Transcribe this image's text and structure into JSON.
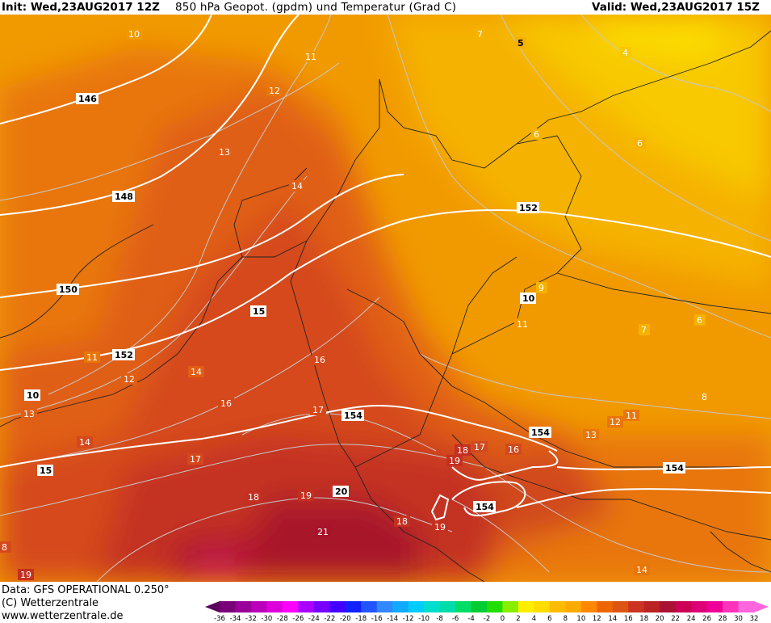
{
  "header": {
    "init": "Init: Wed,23AUG2017 12Z",
    "title": "850 hPa Geopot. (gpdm) und Temperatur (Grad C)",
    "valid": "Valid: Wed,23AUG2017 15Z"
  },
  "footer": {
    "data_source": "Data: GFS OPERATIONAL 0.250°",
    "copyright": "(C) Wetterzentrale",
    "website": "www.wetterzentrale.de"
  },
  "colorbar": {
    "ticks": [
      "-36",
      "-34",
      "-32",
      "-30",
      "-28",
      "-26",
      "-24",
      "-22",
      "-20",
      "-18",
      "-16",
      "-14",
      "-12",
      "-10",
      "-8",
      "-6",
      "-4",
      "-2",
      "0",
      "2",
      "4",
      "6",
      "8",
      "10",
      "12",
      "14",
      "16",
      "18",
      "20",
      "22",
      "24",
      "26",
      "28",
      "30",
      "32"
    ],
    "colors": [
      "#5a005a",
      "#7a007a",
      "#9a009a",
      "#bb00bb",
      "#dd00dd",
      "#ff00ff",
      "#aa00ff",
      "#7700ff",
      "#4400ff",
      "#1122ff",
      "#2255ff",
      "#3388ff",
      "#11aaff",
      "#00ccff",
      "#00ddcc",
      "#00ddaa",
      "#00dd66",
      "#00cc33",
      "#22dd00",
      "#88ee00",
      "#ffee00",
      "#ffdd00",
      "#ffbb00",
      "#ffaa00",
      "#ff8800",
      "#ee6600",
      "#dd5511",
      "#cc3322",
      "#bb2222",
      "#aa1133",
      "#cc0055",
      "#dd0077",
      "#ee0099",
      "#ff33bb",
      "#ff66dd"
    ]
  },
  "map": {
    "field": "850 hPa temperature (Grad C) with geopotential contours (gpdm)",
    "temperature_labels": [
      "10",
      "11",
      "12",
      "13",
      "14",
      "15",
      "16",
      "17",
      "18",
      "19",
      "20",
      "21",
      "7",
      "5",
      "4",
      "6",
      "6",
      "6",
      "7",
      "8",
      "9",
      "10",
      "11",
      "12",
      "13",
      "14",
      "10",
      "11",
      "11",
      "12",
      "13",
      "14",
      "15",
      "16",
      "17",
      "18",
      "19",
      "16",
      "17",
      "18",
      "19",
      "13",
      "14",
      "8",
      "19"
    ],
    "geopotential_labels": [
      "146",
      "148",
      "150",
      "152",
      "152",
      "154",
      "154",
      "154"
    ]
  }
}
